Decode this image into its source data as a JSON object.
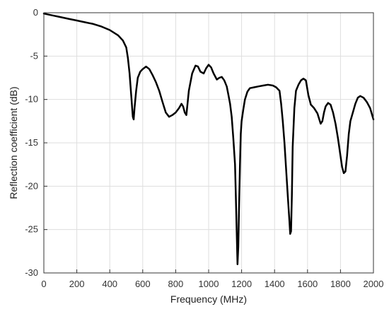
{
  "chart_data": {
    "type": "line",
    "title": "",
    "xlabel": "Frequency (MHz)",
    "ylabel": "Reflection coefficient (dB)",
    "xlim": [
      0,
      2000
    ],
    "ylim": [
      -30,
      0
    ],
    "xticks": [
      0,
      200,
      400,
      600,
      800,
      1000,
      1200,
      1400,
      1600,
      1800,
      2000
    ],
    "yticks": [
      0,
      -5,
      -10,
      -15,
      -20,
      -25,
      -30
    ],
    "grid": true,
    "legend": "none",
    "line_color": "#000000",
    "series": [
      {
        "x": [
          0,
          50,
          100,
          150,
          200,
          250,
          300,
          350,
          400,
          450,
          480,
          500,
          510,
          520,
          530,
          540,
          545,
          550,
          560,
          570,
          585,
          600,
          620,
          640,
          660,
          680,
          700,
          720,
          740,
          760,
          780,
          800,
          820,
          835,
          845,
          855,
          865,
          880,
          900,
          920,
          935,
          950,
          970,
          985,
          1000,
          1015,
          1030,
          1050,
          1065,
          1080,
          1095,
          1110,
          1120,
          1130,
          1140,
          1150,
          1160,
          1165,
          1170,
          1175,
          1180,
          1185,
          1190,
          1195,
          1200,
          1210,
          1220,
          1235,
          1250,
          1275,
          1300,
          1330,
          1360,
          1390,
          1410,
          1430,
          1440,
          1450,
          1460,
          1470,
          1480,
          1490,
          1495,
          1500,
          1505,
          1510,
          1520,
          1530,
          1545,
          1560,
          1575,
          1590,
          1605,
          1620,
          1640,
          1660,
          1670,
          1680,
          1690,
          1700,
          1710,
          1725,
          1740,
          1755,
          1770,
          1785,
          1800,
          1810,
          1820,
          1830,
          1840,
          1850,
          1860,
          1875,
          1890,
          1905,
          1920,
          1940,
          1960,
          1980,
          2000
        ],
        "y": [
          -0.1,
          -0.3,
          -0.5,
          -0.7,
          -0.9,
          -1.1,
          -1.3,
          -1.6,
          -2.0,
          -2.6,
          -3.2,
          -4.0,
          -5.2,
          -7.0,
          -9.5,
          -12.0,
          -12.3,
          -11.0,
          -9.0,
          -7.5,
          -6.8,
          -6.5,
          -6.2,
          -6.5,
          -7.2,
          -8.0,
          -9.0,
          -10.3,
          -11.5,
          -12.0,
          -11.8,
          -11.5,
          -11.0,
          -10.5,
          -10.8,
          -11.5,
          -11.8,
          -9.0,
          -7.0,
          -6.1,
          -6.2,
          -6.8,
          -7.0,
          -6.4,
          -6.0,
          -6.3,
          -7.0,
          -7.7,
          -7.5,
          -7.4,
          -7.8,
          -8.5,
          -9.5,
          -10.5,
          -12.0,
          -14.5,
          -17.5,
          -21.0,
          -25.0,
          -29.0,
          -27.0,
          -22.0,
          -17.5,
          -14.0,
          -12.5,
          -11.2,
          -10.0,
          -9.1,
          -8.7,
          -8.6,
          -8.5,
          -8.4,
          -8.3,
          -8.4,
          -8.6,
          -9.0,
          -10.5,
          -12.5,
          -15.0,
          -18.0,
          -21.0,
          -24.0,
          -25.5,
          -25.2,
          -21.0,
          -15.5,
          -11.0,
          -9.0,
          -8.3,
          -7.8,
          -7.6,
          -7.8,
          -9.5,
          -10.6,
          -11.0,
          -11.6,
          -12.2,
          -12.8,
          -12.5,
          -11.5,
          -10.8,
          -10.4,
          -10.6,
          -11.5,
          -12.8,
          -14.5,
          -16.5,
          -17.8,
          -18.5,
          -18.3,
          -16.5,
          -14.0,
          -12.5,
          -11.5,
          -10.5,
          -9.8,
          -9.6,
          -9.8,
          -10.3,
          -11.0,
          -12.3
        ]
      }
    ]
  }
}
